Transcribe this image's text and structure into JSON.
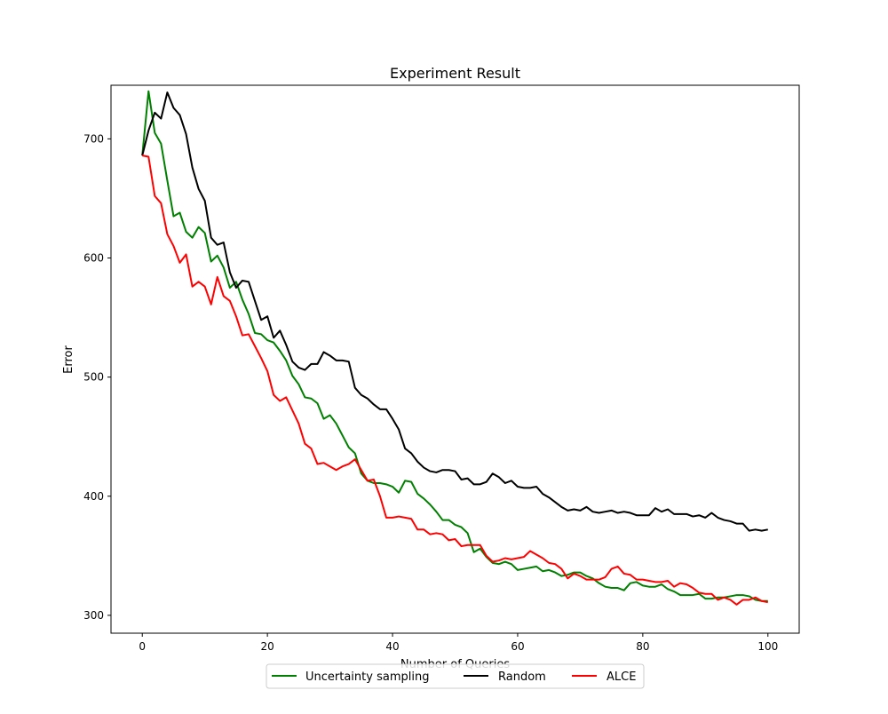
{
  "chart_data": {
    "type": "line",
    "title": "Experiment Result",
    "xlabel": "Number of Queries",
    "ylabel": "Error",
    "xlim": [
      -5,
      105
    ],
    "ylim": [
      285,
      745
    ],
    "xticks": [
      0,
      20,
      40,
      60,
      80,
      100
    ],
    "yticks": [
      300,
      400,
      500,
      600,
      700
    ],
    "grid": false,
    "legend_position": "bottom-center",
    "x": [
      0,
      1,
      2,
      3,
      4,
      5,
      6,
      7,
      8,
      9,
      10,
      11,
      12,
      13,
      14,
      15,
      16,
      17,
      18,
      19,
      20,
      21,
      22,
      23,
      24,
      25,
      26,
      27,
      28,
      29,
      30,
      31,
      32,
      33,
      34,
      35,
      36,
      37,
      38,
      39,
      40,
      41,
      42,
      43,
      44,
      45,
      46,
      47,
      48,
      49,
      50,
      51,
      52,
      53,
      54,
      55,
      56,
      57,
      58,
      59,
      60,
      61,
      62,
      63,
      64,
      65,
      66,
      67,
      68,
      69,
      70,
      71,
      72,
      73,
      74,
      75,
      76,
      77,
      78,
      79,
      80,
      81,
      82,
      83,
      84,
      85,
      86,
      87,
      88,
      89,
      90,
      91,
      92,
      93,
      94,
      95,
      96,
      97,
      98,
      99,
      100
    ],
    "series": [
      {
        "name": "Uncertainty sampling",
        "color": "#008000",
        "values": [
          686,
          740,
          705,
          696,
          665,
          635,
          638,
          622,
          617,
          626,
          621,
          597,
          602,
          592,
          575,
          580,
          565,
          553,
          537,
          536,
          531,
          529,
          522,
          514,
          501,
          494,
          483,
          482,
          478,
          465,
          468,
          461,
          451,
          441,
          436,
          419,
          413,
          411,
          411,
          410,
          408,
          403,
          413,
          412,
          402,
          398,
          393,
          387,
          380,
          380,
          376,
          374,
          369,
          353,
          356,
          349,
          344,
          343,
          345,
          343,
          338,
          339,
          340,
          341,
          337,
          338,
          336,
          333,
          334,
          336,
          336,
          333,
          331,
          327,
          324,
          323,
          323,
          321,
          327,
          328,
          325,
          324,
          324,
          326,
          322,
          320,
          317,
          317,
          317,
          318,
          314,
          314,
          315,
          315,
          316,
          317,
          317,
          316,
          313,
          312,
          312
        ]
      },
      {
        "name": "Random",
        "color": "#000000",
        "values": [
          686,
          707,
          722,
          717,
          739,
          726,
          720,
          704,
          676,
          658,
          648,
          617,
          611,
          613,
          588,
          575,
          581,
          580,
          564,
          548,
          551,
          533,
          539,
          527,
          513,
          508,
          506,
          511,
          511,
          521,
          518,
          514,
          514,
          513,
          491,
          485,
          482,
          477,
          473,
          473,
          465,
          456,
          440,
          436,
          429,
          424,
          421,
          420,
          422,
          422,
          421,
          414,
          415,
          410,
          410,
          412,
          419,
          416,
          411,
          413,
          408,
          407,
          407,
          408,
          402,
          399,
          395,
          391,
          388,
          389,
          388,
          391,
          387,
          386,
          387,
          388,
          386,
          387,
          386,
          384,
          384,
          384,
          390,
          387,
          389,
          385,
          385,
          385,
          383,
          384,
          382,
          386,
          382,
          380,
          379,
          377,
          377,
          371,
          372,
          371,
          372
        ]
      },
      {
        "name": "ALCE",
        "color": "#ff0000",
        "values": [
          686,
          685,
          652,
          646,
          620,
          610,
          596,
          603,
          576,
          580,
          576,
          561,
          584,
          568,
          564,
          551,
          535,
          536,
          526,
          516,
          505,
          485,
          480,
          483,
          472,
          461,
          444,
          440,
          427,
          428,
          425,
          422,
          425,
          427,
          431,
          422,
          413,
          414,
          400,
          382,
          382,
          383,
          382,
          381,
          372,
          372,
          368,
          369,
          368,
          363,
          364,
          358,
          359,
          359,
          359,
          350,
          345,
          346,
          348,
          347,
          348,
          349,
          354,
          351,
          348,
          344,
          343,
          339,
          331,
          335,
          333,
          330,
          330,
          330,
          332,
          339,
          341,
          335,
          334,
          330,
          330,
          329,
          328,
          328,
          329,
          324,
          327,
          326,
          323,
          319,
          318,
          318,
          313,
          315,
          313,
          309,
          313,
          313,
          315,
          312,
          311
        ]
      }
    ]
  }
}
